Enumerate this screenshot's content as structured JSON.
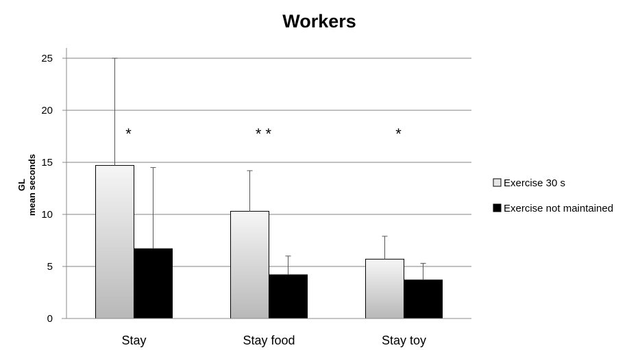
{
  "chart_data": {
    "type": "bar",
    "title": "Workers",
    "ylabel_line1": "GL",
    "ylabel_line2": "mean seconds",
    "xlabel": "",
    "categories": [
      "Stay",
      "Stay food",
      "Stay toy"
    ],
    "series": [
      {
        "name": "Exercise 30 s",
        "values": [
          14.7,
          10.3,
          5.7
        ],
        "error_plus": [
          10.3,
          3.9,
          2.2
        ],
        "color": "#d9d9d9"
      },
      {
        "name": "Exercise not maintained",
        "values": [
          6.7,
          4.2,
          3.7
        ],
        "error_plus": [
          7.8,
          1.8,
          1.6
        ],
        "color": "#000000"
      }
    ],
    "annotations": [
      "*",
      "* *",
      "*"
    ],
    "ylim": [
      0,
      25
    ],
    "yticks": [
      "0",
      "5",
      "10",
      "15",
      "20",
      "25"
    ],
    "grid": true,
    "legend_position": "right"
  }
}
